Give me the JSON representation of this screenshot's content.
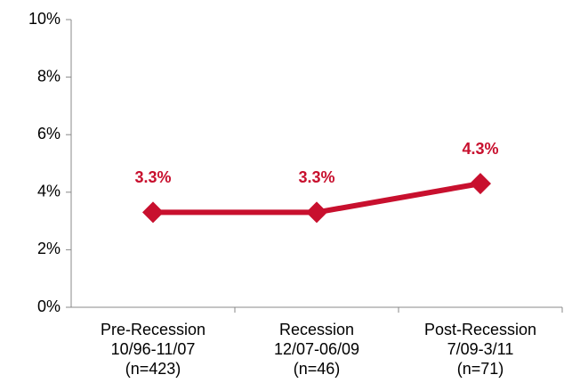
{
  "chart_data": {
    "type": "line",
    "categories": [
      "Pre-Recession\n10/96-11/07\n(n=423)",
      "Recession\n12/07-06/09\n(n=46)",
      "Post-Recession\n7/09-3/11\n(n=71)"
    ],
    "series": [
      {
        "color": "#c8102e",
        "values": [
          3.3,
          3.3,
          4.3
        ],
        "value_labels": [
          "3.3%",
          "3.3%",
          "4.3%"
        ]
      }
    ],
    "ylim": [
      0,
      10
    ],
    "yticks": [
      {
        "value": 0,
        "label": "0%"
      },
      {
        "value": 2,
        "label": "2%"
      },
      {
        "value": 4,
        "label": "4%"
      },
      {
        "value": 6,
        "label": "6%"
      },
      {
        "value": 8,
        "label": "8%"
      },
      {
        "value": 10,
        "label": "10%"
      }
    ],
    "grid": false
  }
}
